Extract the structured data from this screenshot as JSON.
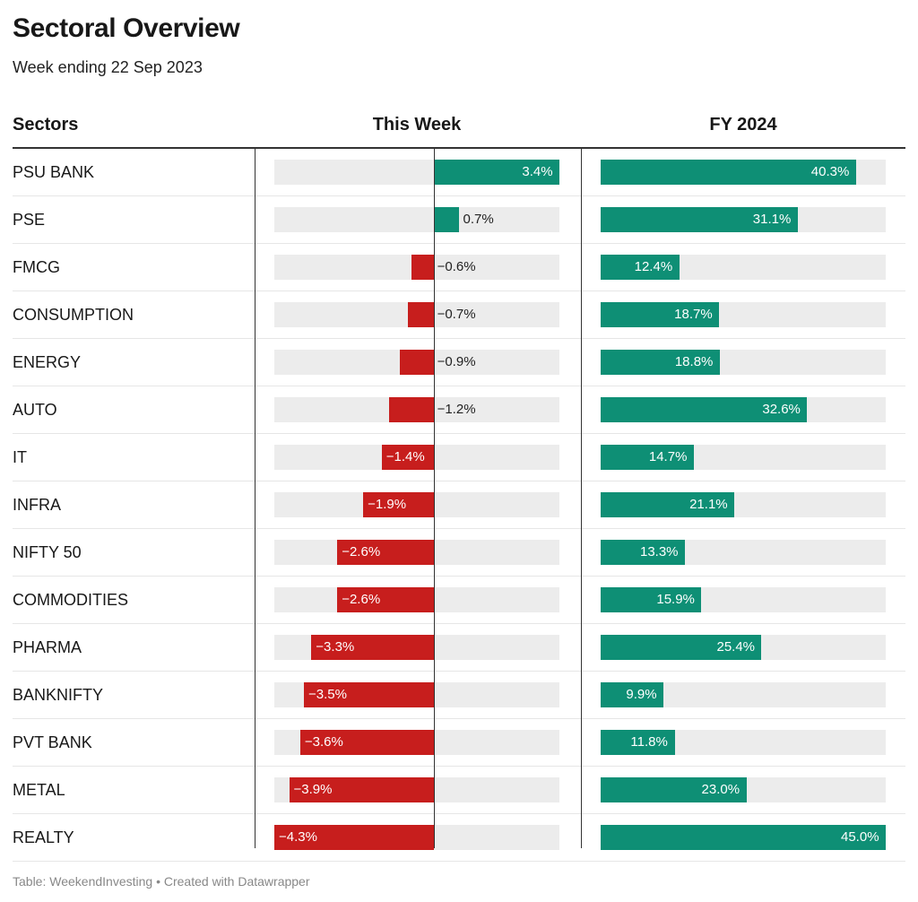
{
  "title": "Sectoral Overview",
  "subtitle": "Week ending 22 Sep 2023",
  "headers": {
    "sector": "Sectors",
    "week": "This Week",
    "fy": "FY 2024"
  },
  "footer": {
    "source": "Table: WeekendInvesting",
    "separator": " • ",
    "credit": "Created with Datawrapper"
  },
  "colors": {
    "positive": "#0e8f75",
    "negative": "#c71e1d",
    "track": "#ececec"
  },
  "chart_data": {
    "type": "table",
    "columns": [
      "Sectors",
      "This Week",
      "FY 2024"
    ],
    "week_range": [
      -4.3,
      3.4
    ],
    "fy_range": [
      0,
      45.0
    ],
    "rows": [
      {
        "sector": "PSU BANK",
        "week": 3.4,
        "week_label": "3.4%",
        "fy": 40.3,
        "fy_label": "40.3%"
      },
      {
        "sector": "PSE",
        "week": 0.7,
        "week_label": "0.7%",
        "fy": 31.1,
        "fy_label": "31.1%"
      },
      {
        "sector": "FMCG",
        "week": -0.6,
        "week_label": "−0.6%",
        "fy": 12.4,
        "fy_label": "12.4%"
      },
      {
        "sector": "CONSUMPTION",
        "week": -0.7,
        "week_label": "−0.7%",
        "fy": 18.7,
        "fy_label": "18.7%"
      },
      {
        "sector": "ENERGY",
        "week": -0.9,
        "week_label": "−0.9%",
        "fy": 18.8,
        "fy_label": "18.8%"
      },
      {
        "sector": "AUTO",
        "week": -1.2,
        "week_label": "−1.2%",
        "fy": 32.6,
        "fy_label": "32.6%"
      },
      {
        "sector": "IT",
        "week": -1.4,
        "week_label": "−1.4%",
        "fy": 14.7,
        "fy_label": "14.7%"
      },
      {
        "sector": "INFRA",
        "week": -1.9,
        "week_label": "−1.9%",
        "fy": 21.1,
        "fy_label": "21.1%"
      },
      {
        "sector": "NIFTY 50",
        "week": -2.6,
        "week_label": "−2.6%",
        "fy": 13.3,
        "fy_label": "13.3%"
      },
      {
        "sector": "COMMODITIES",
        "week": -2.6,
        "week_label": "−2.6%",
        "fy": 15.9,
        "fy_label": "15.9%"
      },
      {
        "sector": "PHARMA",
        "week": -3.3,
        "week_label": "−3.3%",
        "fy": 25.4,
        "fy_label": "25.4%"
      },
      {
        "sector": "BANKNIFTY",
        "week": -3.5,
        "week_label": "−3.5%",
        "fy": 9.9,
        "fy_label": "9.9%"
      },
      {
        "sector": "PVT BANK",
        "week": -3.6,
        "week_label": "−3.6%",
        "fy": 11.8,
        "fy_label": "11.8%"
      },
      {
        "sector": "METAL",
        "week": -3.9,
        "week_label": "−3.9%",
        "fy": 23.0,
        "fy_label": "23.0%"
      },
      {
        "sector": "REALTY",
        "week": -4.3,
        "week_label": "−4.3%",
        "fy": 45.0,
        "fy_label": "45.0%"
      }
    ]
  }
}
